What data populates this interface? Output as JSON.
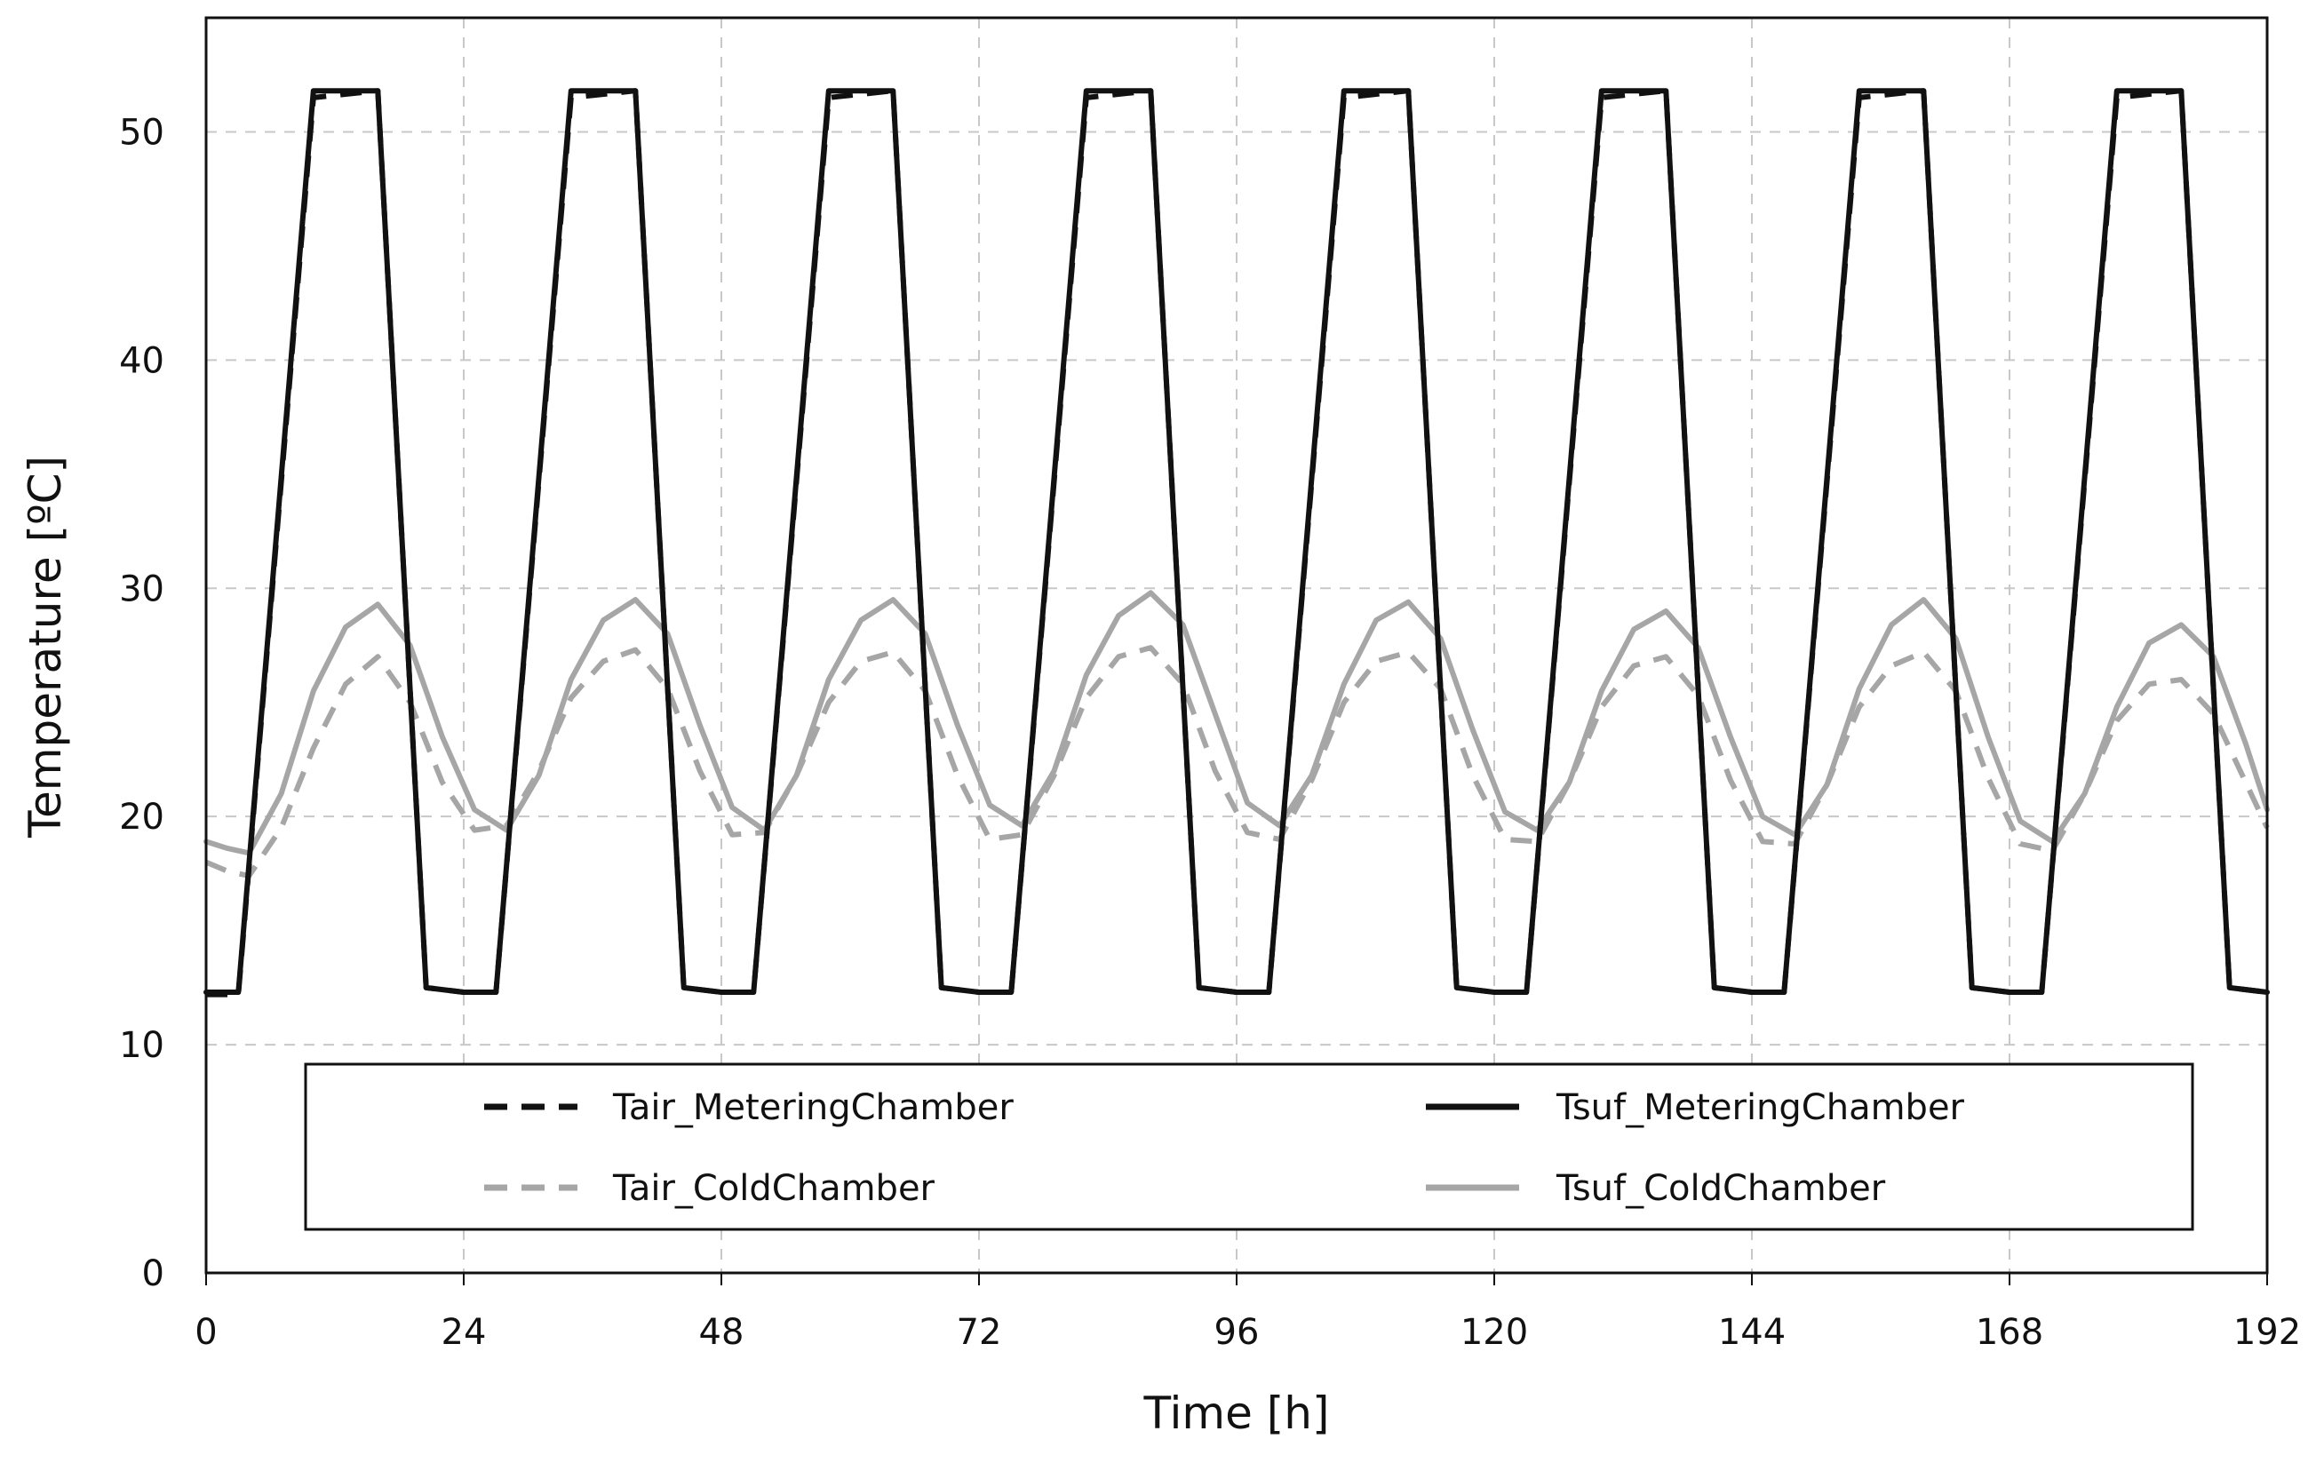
{
  "chart_data": {
    "type": "line",
    "title": "",
    "xlabel": "Time [h]",
    "ylabel": "Temperature [ºC]",
    "xlim": [
      0,
      192
    ],
    "ylim": [
      0,
      55
    ],
    "xticks": [
      0,
      24,
      48,
      72,
      96,
      120,
      144,
      168,
      192
    ],
    "yticks": [
      0,
      10,
      20,
      30,
      40,
      50
    ],
    "grid": true,
    "legend_position": "bottom",
    "colors": {
      "black": "#111111",
      "gray": "#a6a6a6"
    },
    "series": [
      {
        "name": "Tair_MeteringChamber",
        "style": "dashed",
        "color": "#111111",
        "x": [
          0,
          3,
          10,
          16,
          20.5,
          24,
          27,
          34,
          40,
          44.5,
          48,
          51,
          58,
          64,
          68.5,
          72,
          75,
          82,
          88,
          92.5,
          96,
          99,
          106,
          112,
          116.5,
          120,
          123,
          130,
          136,
          140.5,
          144,
          147,
          154,
          160,
          164.5,
          168,
          171,
          178,
          184,
          188.5,
          192
        ],
        "y": [
          12.2,
          12.2,
          51.5,
          51.8,
          12.5,
          12.3,
          12.3,
          51.5,
          51.8,
          12.5,
          12.3,
          12.3,
          51.5,
          51.8,
          12.5,
          12.3,
          12.3,
          51.5,
          51.8,
          12.5,
          12.3,
          12.3,
          51.5,
          51.8,
          12.5,
          12.3,
          12.3,
          51.5,
          51.8,
          12.5,
          12.3,
          12.3,
          51.5,
          51.8,
          12.5,
          12.3,
          12.3,
          51.5,
          51.8,
          12.5,
          12.3
        ]
      },
      {
        "name": "Tsuf_MeteringChamber",
        "style": "solid",
        "color": "#111111",
        "x": [
          0,
          3,
          10,
          16,
          20.5,
          24,
          27,
          34,
          40,
          44.5,
          48,
          51,
          58,
          64,
          68.5,
          72,
          75,
          82,
          88,
          92.5,
          96,
          99,
          106,
          112,
          116.5,
          120,
          123,
          130,
          136,
          140.5,
          144,
          147,
          154,
          160,
          164.5,
          168,
          171,
          178,
          184,
          188.5,
          192
        ],
        "y": [
          12.3,
          12.3,
          51.8,
          51.8,
          12.5,
          12.3,
          12.3,
          51.8,
          51.8,
          12.5,
          12.3,
          12.3,
          51.8,
          51.8,
          12.5,
          12.3,
          12.3,
          51.8,
          51.8,
          12.5,
          12.3,
          12.3,
          51.8,
          51.8,
          12.5,
          12.3,
          12.3,
          51.8,
          51.8,
          12.5,
          12.3,
          12.3,
          51.8,
          51.8,
          12.5,
          12.3,
          12.3,
          51.8,
          51.8,
          12.5,
          12.3
        ]
      },
      {
        "name": "Tair_ColdChamber",
        "style": "dashed",
        "color": "#a6a6a6",
        "x": [
          0,
          2,
          4,
          7,
          10,
          13,
          16,
          19,
          22,
          25,
          28,
          31,
          34,
          37,
          40,
          43,
          46,
          49,
          52,
          55,
          58,
          61,
          64,
          67,
          70,
          73,
          76,
          79,
          82,
          85,
          88,
          91,
          94,
          97,
          100,
          103,
          106,
          109,
          112,
          115,
          118,
          121,
          124,
          127,
          130,
          133,
          136,
          139,
          142,
          145,
          148,
          151,
          154,
          157,
          160,
          163,
          166,
          169,
          172,
          175,
          178,
          181,
          184,
          187,
          190,
          192
        ],
        "y": [
          18.0,
          17.6,
          17.4,
          19.5,
          23.0,
          25.8,
          27.0,
          25.0,
          21.5,
          19.4,
          19.6,
          22.0,
          25.2,
          26.8,
          27.3,
          25.6,
          22.0,
          19.2,
          19.3,
          21.8,
          25.0,
          26.8,
          27.2,
          25.5,
          21.8,
          19.0,
          19.2,
          21.8,
          25.2,
          27.0,
          27.4,
          25.8,
          22.0,
          19.3,
          19.0,
          21.6,
          25.0,
          26.8,
          27.2,
          25.6,
          21.8,
          19.0,
          18.9,
          21.5,
          24.8,
          26.6,
          27.0,
          25.3,
          21.6,
          18.9,
          18.8,
          21.4,
          24.8,
          26.6,
          27.2,
          25.5,
          21.7,
          18.8,
          18.5,
          21.0,
          24.2,
          25.8,
          26.0,
          24.5,
          21.5,
          19.5
        ]
      },
      {
        "name": "Tsuf_ColdChamber",
        "style": "solid",
        "color": "#a6a6a6",
        "x": [
          0,
          2,
          4,
          7,
          10,
          13,
          16,
          19,
          22,
          25,
          28,
          31,
          34,
          37,
          40,
          43,
          46,
          49,
          52,
          55,
          58,
          61,
          64,
          67,
          70,
          73,
          76,
          79,
          82,
          85,
          88,
          91,
          94,
          97,
          100,
          103,
          106,
          109,
          112,
          115,
          118,
          121,
          124,
          127,
          130,
          133,
          136,
          139,
          142,
          145,
          148,
          151,
          154,
          157,
          160,
          163,
          166,
          169,
          172,
          175,
          178,
          181,
          184,
          187,
          190,
          192
        ],
        "y": [
          18.9,
          18.6,
          18.4,
          21.0,
          25.5,
          28.3,
          29.3,
          27.5,
          23.5,
          20.3,
          19.4,
          21.8,
          26.0,
          28.6,
          29.5,
          28.0,
          24.0,
          20.4,
          19.4,
          21.8,
          26.0,
          28.6,
          29.5,
          28.0,
          24.0,
          20.5,
          19.6,
          22.0,
          26.2,
          28.8,
          29.8,
          28.4,
          24.5,
          20.6,
          19.6,
          21.8,
          25.8,
          28.6,
          29.4,
          27.8,
          23.8,
          20.2,
          19.4,
          21.5,
          25.5,
          28.2,
          29.0,
          27.4,
          23.5,
          20.0,
          19.2,
          21.4,
          25.6,
          28.4,
          29.5,
          27.8,
          23.5,
          19.8,
          18.9,
          21.0,
          24.8,
          27.6,
          28.4,
          27.0,
          23.2,
          20.3
        ]
      }
    ]
  }
}
